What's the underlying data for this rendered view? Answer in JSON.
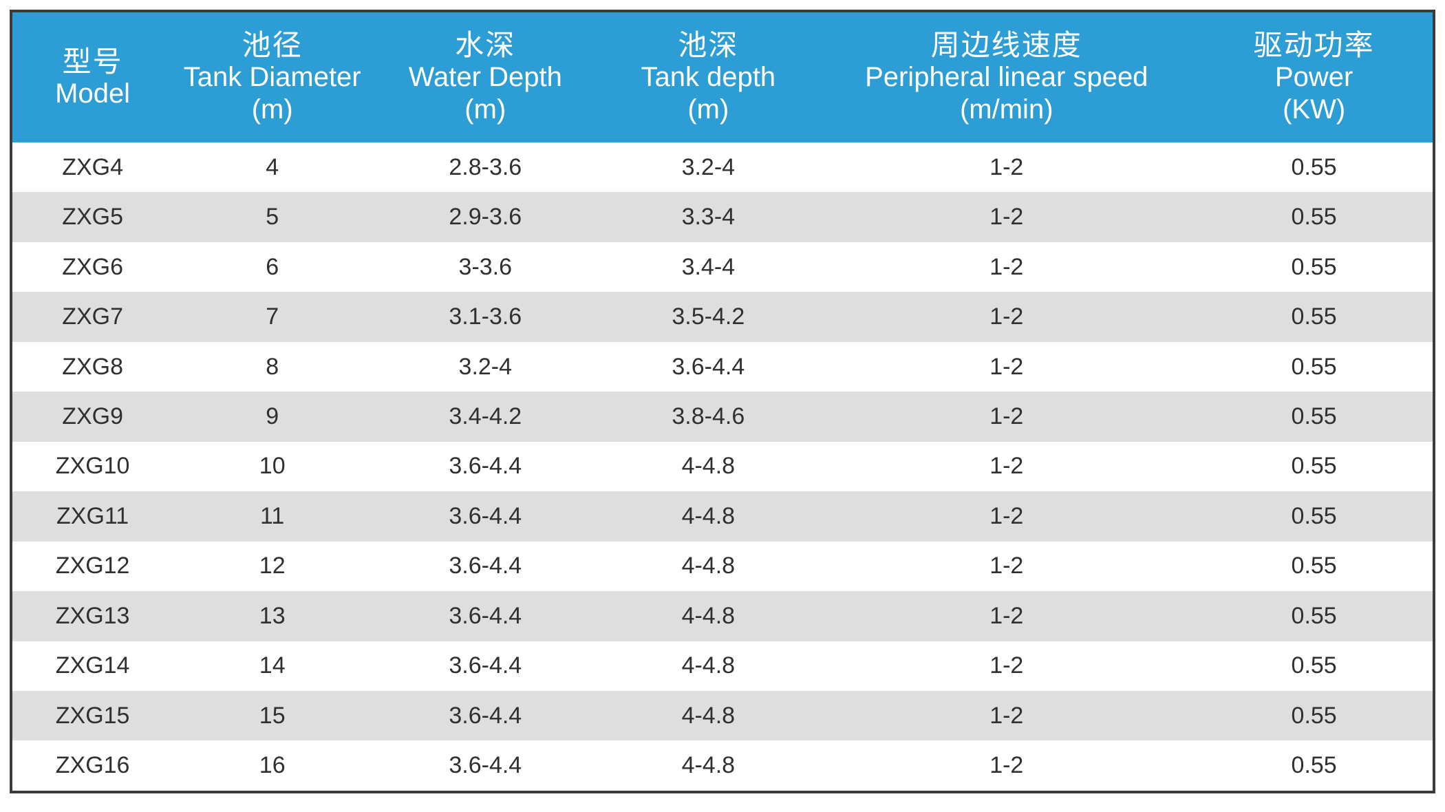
{
  "table": {
    "columns": [
      {
        "zh": "型号",
        "en": "Model",
        "unit": ""
      },
      {
        "zh": "池径",
        "en": "Tank Diameter",
        "unit": "(m)"
      },
      {
        "zh": "水深",
        "en": "Water Depth",
        "unit": "(m)"
      },
      {
        "zh": "池深",
        "en": "Tank depth",
        "unit": "(m)"
      },
      {
        "zh": "周边线速度",
        "en": "Peripheral linear speed",
        "unit": "(m/min)"
      },
      {
        "zh": "驱动功率",
        "en": "Power",
        "unit": "(KW)"
      }
    ],
    "rows": [
      [
        "ZXG4",
        "4",
        "2.8-3.6",
        "3.2-4",
        "1-2",
        "0.55"
      ],
      [
        "ZXG5",
        "5",
        "2.9-3.6",
        "3.3-4",
        "1-2",
        "0.55"
      ],
      [
        "ZXG6",
        "6",
        "3-3.6",
        "3.4-4",
        "1-2",
        "0.55"
      ],
      [
        "ZXG7",
        "7",
        "3.1-3.6",
        "3.5-4.2",
        "1-2",
        "0.55"
      ],
      [
        "ZXG8",
        "8",
        "3.2-4",
        "3.6-4.4",
        "1-2",
        "0.55"
      ],
      [
        "ZXG9",
        "9",
        "3.4-4.2",
        "3.8-4.6",
        "1-2",
        "0.55"
      ],
      [
        "ZXG10",
        "10",
        "3.6-4.4",
        "4-4.8",
        "1-2",
        "0.55"
      ],
      [
        "ZXG11",
        "11",
        "3.6-4.4",
        "4-4.8",
        "1-2",
        "0.55"
      ],
      [
        "ZXG12",
        "12",
        "3.6-4.4",
        "4-4.8",
        "1-2",
        "0.55"
      ],
      [
        "ZXG13",
        "13",
        "3.6-4.4",
        "4-4.8",
        "1-2",
        "0.55"
      ],
      [
        "ZXG14",
        "14",
        "3.6-4.4",
        "4-4.8",
        "1-2",
        "0.55"
      ],
      [
        "ZXG15",
        "15",
        "3.6-4.4",
        "4-4.8",
        "1-2",
        "0.55"
      ],
      [
        "ZXG16",
        "16",
        "3.6-4.4",
        "4-4.8",
        "1-2",
        "0.55"
      ]
    ]
  },
  "colors": {
    "header_bg": "#2D9ED5",
    "header_text": "#FFFFFF",
    "row_bg": "#FFFFFF",
    "row_alt_bg": "#DEDEDE",
    "body_text": "#303030",
    "border": "#3B3B3B"
  }
}
